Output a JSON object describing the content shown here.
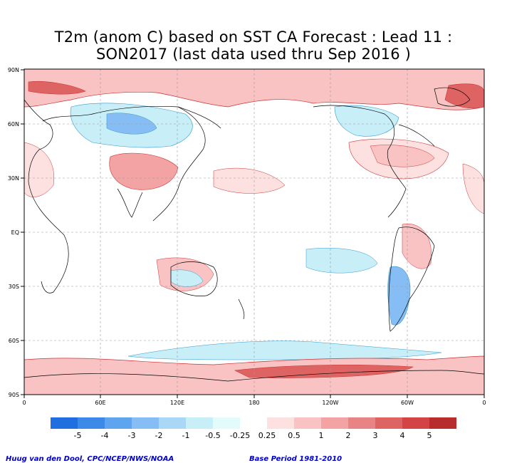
{
  "title": {
    "line1": "T2m (anom C) based on SST CA Forecast : Lead 11 :",
    "line2": "SON2017 (last data used thru Sep 2016 )"
  },
  "lat_labels": [
    "90N",
    "60N",
    "30N",
    "EQ",
    "30S",
    "60S",
    "90S"
  ],
  "lon_labels": [
    "0",
    "60E",
    "120E",
    "180",
    "120W",
    "60W",
    "0"
  ],
  "colorbar": {
    "colors": [
      "#1f6fe0",
      "#3b8ae8",
      "#5ea4ee",
      "#86bdf4",
      "#abd7f6",
      "#c8eef8",
      "#e3fbfb",
      "#ffffff",
      "#fde1e1",
      "#f9c3c3",
      "#f3a3a3",
      "#e98484",
      "#de6464",
      "#d44444",
      "#b82c2c"
    ],
    "tick_labels": [
      "-5",
      "-4",
      "-3",
      "-2",
      "-1",
      "-0.5",
      "-0.25",
      "0.25",
      "0.5",
      "1",
      "2",
      "3",
      "4",
      "5"
    ]
  },
  "credits": {
    "left": "Huug van den Dool, CPC/NCEP/NWS/NOAA",
    "right": "Base Period 1981-2010"
  },
  "colors": {
    "warm_light": "#fde1e1",
    "warm_mid": "#f3a3a3",
    "warm_strong": "#d44444",
    "cool_light": "#c8eef8",
    "cool_mid": "#86bdf4"
  }
}
